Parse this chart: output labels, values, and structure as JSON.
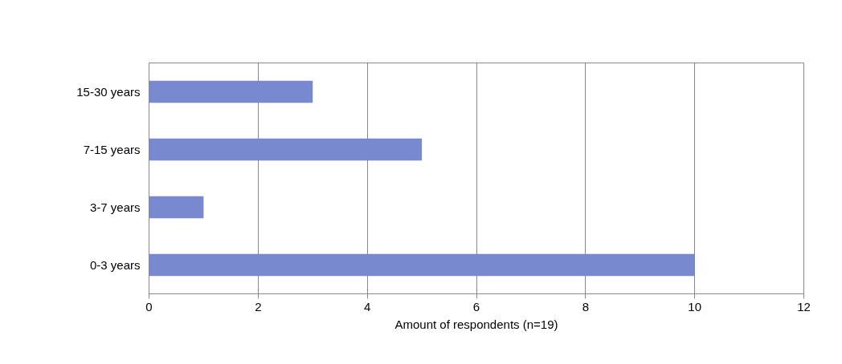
{
  "chart_data": {
    "type": "bar",
    "orientation": "horizontal",
    "categories": [
      "15-30 years",
      "7-15 years",
      "3-7 years",
      "0-3 years"
    ],
    "values": [
      3,
      5,
      1,
      10
    ],
    "color": "#7989d0",
    "xlabel": "Amount of respondents (n=19)",
    "xlim": [
      0,
      12
    ],
    "xticks": [
      0,
      2,
      4,
      6,
      8,
      10,
      12
    ],
    "grid": "x"
  }
}
